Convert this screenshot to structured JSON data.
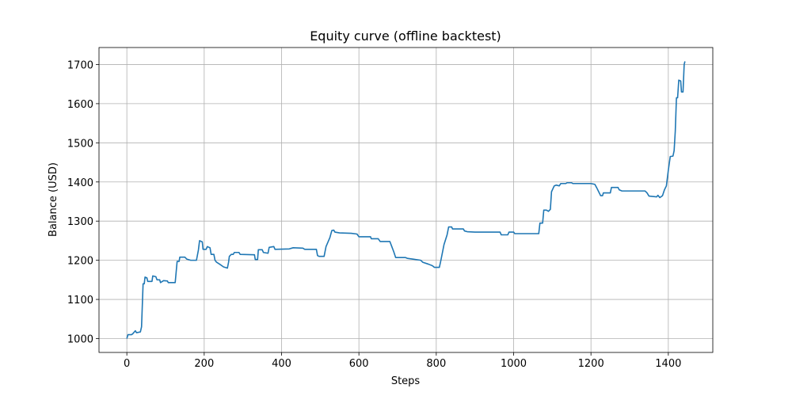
{
  "chart_data": {
    "type": "line",
    "title": "Equity curve (offline backtest)",
    "xlabel": "Steps",
    "ylabel": "Balance (USD)",
    "xlim": [
      -72,
      1515
    ],
    "ylim": [
      964.6,
      1743.4
    ],
    "xticks": [
      0,
      200,
      400,
      600,
      800,
      1000,
      1200,
      1400
    ],
    "yticks": [
      1000,
      1100,
      1200,
      1300,
      1400,
      1500,
      1600,
      1700
    ],
    "grid": true,
    "series": [
      {
        "color": "#1f77b4",
        "x": [
          0,
          3,
          12,
          15,
          22,
          25,
          35,
          38,
          42,
          45,
          47,
          52,
          54,
          65,
          67,
          75,
          78,
          85,
          87,
          95,
          105,
          107,
          125,
          130,
          135,
          137,
          150,
          155,
          165,
          180,
          185,
          188,
          195,
          197,
          205,
          208,
          215,
          218,
          225,
          228,
          232,
          240,
          250,
          260,
          263,
          265,
          270,
          275,
          278,
          290,
          293,
          330,
          332,
          338,
          340,
          350,
          353,
          365,
          368,
          380,
          383,
          420,
          430,
          455,
          460,
          490,
          493,
          497,
          510,
          515,
          525,
          530,
          535,
          538,
          550,
          580,
          595,
          600,
          630,
          632,
          650,
          655,
          680,
          685,
          690,
          695,
          720,
          725,
          740,
          760,
          765,
          780,
          790,
          795,
          808,
          812,
          820,
          828,
          832,
          840,
          842,
          870,
          873,
          880,
          900,
          965,
          968,
          985,
          988,
          1000,
          1003,
          1065,
          1068,
          1075,
          1078,
          1085,
          1090,
          1095,
          1098,
          1105,
          1110,
          1118,
          1122,
          1135,
          1138,
          1150,
          1153,
          1200,
          1210,
          1215,
          1220,
          1225,
          1230,
          1232,
          1250,
          1253,
          1270,
          1273,
          1280,
          1340,
          1345,
          1350,
          1370,
          1373,
          1378,
          1385,
          1390,
          1395,
          1400,
          1405,
          1412,
          1415,
          1418,
          1421,
          1424,
          1427,
          1432,
          1434,
          1438,
          1441,
          1443
        ],
        "values": [
          1000,
          1010,
          1010,
          1012,
          1020,
          1015,
          1017,
          1030,
          1140,
          1140,
          1157,
          1155,
          1146,
          1146,
          1160,
          1158,
          1150,
          1150,
          1143,
          1148,
          1147,
          1143,
          1143,
          1197,
          1197,
          1208,
          1208,
          1203,
          1200,
          1200,
          1226,
          1250,
          1247,
          1228,
          1228,
          1235,
          1232,
          1215,
          1215,
          1200,
          1195,
          1190,
          1183,
          1180,
          1195,
          1210,
          1215,
          1215,
          1220,
          1220,
          1215,
          1214,
          1202,
          1202,
          1227,
          1227,
          1220,
          1218,
          1233,
          1235,
          1228,
          1229,
          1232,
          1231,
          1228,
          1228,
          1212,
          1210,
          1210,
          1235,
          1258,
          1276,
          1277,
          1272,
          1270,
          1269,
          1267,
          1260,
          1260,
          1255,
          1255,
          1248,
          1248,
          1235,
          1222,
          1207,
          1207,
          1205,
          1203,
          1200,
          1195,
          1190,
          1186,
          1182,
          1182,
          1200,
          1240,
          1265,
          1285,
          1285,
          1280,
          1280,
          1275,
          1273,
          1272,
          1272,
          1265,
          1265,
          1272,
          1272,
          1268,
          1268,
          1295,
          1295,
          1328,
          1328,
          1325,
          1330,
          1375,
          1390,
          1392,
          1390,
          1396,
          1396,
          1398,
          1398,
          1396,
          1396,
          1394,
          1385,
          1375,
          1365,
          1365,
          1372,
          1372,
          1386,
          1386,
          1380,
          1377,
          1377,
          1372,
          1364,
          1362,
          1366,
          1360,
          1365,
          1380,
          1390,
          1430,
          1465,
          1466,
          1480,
          1530,
          1615,
          1615,
          1660,
          1658,
          1630,
          1630,
          1700,
          1708
        ]
      }
    ]
  }
}
